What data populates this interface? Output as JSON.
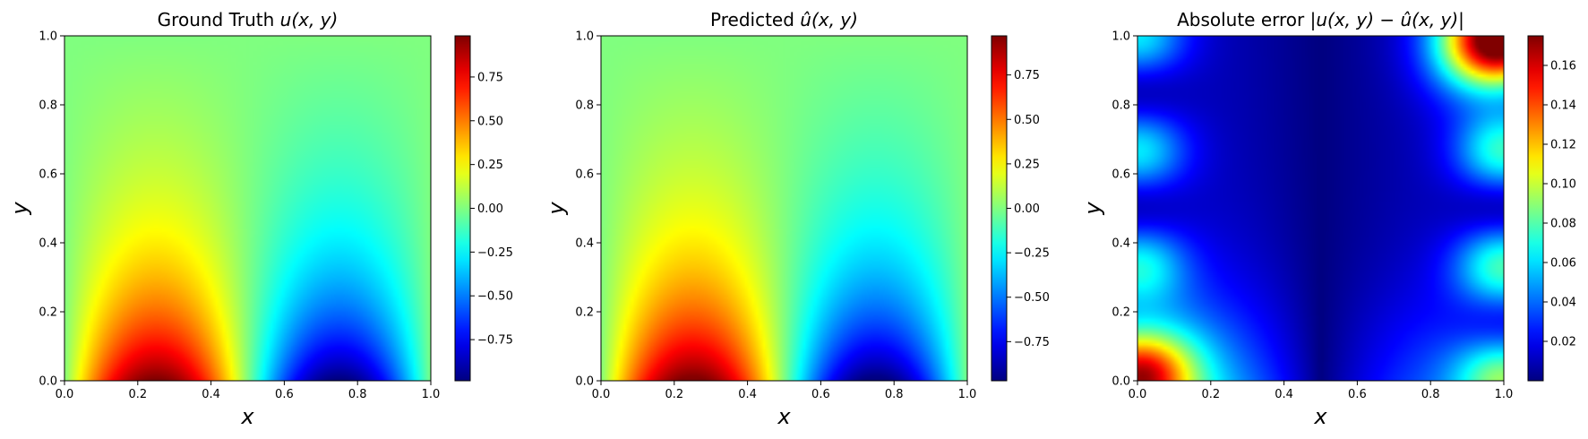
{
  "chart_data": [
    {
      "type": "heatmap",
      "title": "Ground Truth u(x, y)",
      "title_parts": [
        "Ground Truth ",
        "u(x, y)"
      ],
      "xlabel": "x",
      "ylabel": "y",
      "xlim": [
        0,
        1
      ],
      "ylim": [
        0,
        1
      ],
      "x_ticks": [
        "0.0",
        "0.2",
        "0.4",
        "0.6",
        "0.8",
        "1.0"
      ],
      "y_ticks": [
        "0.0",
        "0.2",
        "0.4",
        "0.6",
        "0.8",
        "1.0"
      ],
      "field": "sin(2πx)·(cosh(πy)−(coth π)·sinh(πy))",
      "colormap": "jet",
      "colorbar_range": [
        -0.985,
        0.985
      ],
      "colorbar_ticks": [
        "0.75",
        "0.50",
        "0.25",
        "0.00",
        "−0.25",
        "−0.50",
        "−0.75"
      ],
      "colorbar_tick_values": [
        0.75,
        0.5,
        0.25,
        0,
        -0.25,
        -0.5,
        -0.75
      ]
    },
    {
      "type": "heatmap",
      "title": "Predicted û(x, y)",
      "title_parts": [
        "Predicted ",
        "û(x, y)"
      ],
      "xlabel": "x",
      "ylabel": "y",
      "xlim": [
        0,
        1
      ],
      "ylim": [
        0,
        1
      ],
      "x_ticks": [
        "0.0",
        "0.2",
        "0.4",
        "0.6",
        "0.8",
        "1.0"
      ],
      "y_ticks": [
        "0.0",
        "0.2",
        "0.4",
        "0.6",
        "0.8",
        "1.0"
      ],
      "field": "sin(2πx)·(cosh(πy)−(coth π)·sinh(πy))",
      "colormap": "jet",
      "colorbar_range": [
        -0.97,
        0.97
      ],
      "colorbar_ticks": [
        "0.75",
        "0.50",
        "0.25",
        "0.00",
        "−0.25",
        "−0.50",
        "−0.75"
      ],
      "colorbar_tick_values": [
        0.75,
        0.5,
        0.25,
        0,
        -0.25,
        -0.5,
        -0.75
      ]
    },
    {
      "type": "heatmap",
      "title": "Absolute error |u(x, y) − û(x, y)|",
      "title_parts": [
        "Absolute error ",
        "|u(x, y) − û(x, y)|"
      ],
      "xlabel": "x",
      "ylabel": "y",
      "xlim": [
        0,
        1
      ],
      "ylim": [
        0,
        1
      ],
      "x_ticks": [
        "0.0",
        "0.2",
        "0.4",
        "0.6",
        "0.8",
        "1.0"
      ],
      "y_ticks": [
        "0.0",
        "0.2",
        "0.4",
        "0.6",
        "0.8",
        "1.0"
      ],
      "field": "absolute error",
      "colormap": "jet",
      "colorbar_range": [
        0,
        0.175
      ],
      "colorbar_ticks": [
        "0.16",
        "0.14",
        "0.12",
        "0.10",
        "0.08",
        "0.06",
        "0.04",
        "0.02"
      ],
      "colorbar_tick_values": [
        0.16,
        0.14,
        0.12,
        0.1,
        0.08,
        0.06,
        0.04,
        0.02
      ]
    }
  ]
}
